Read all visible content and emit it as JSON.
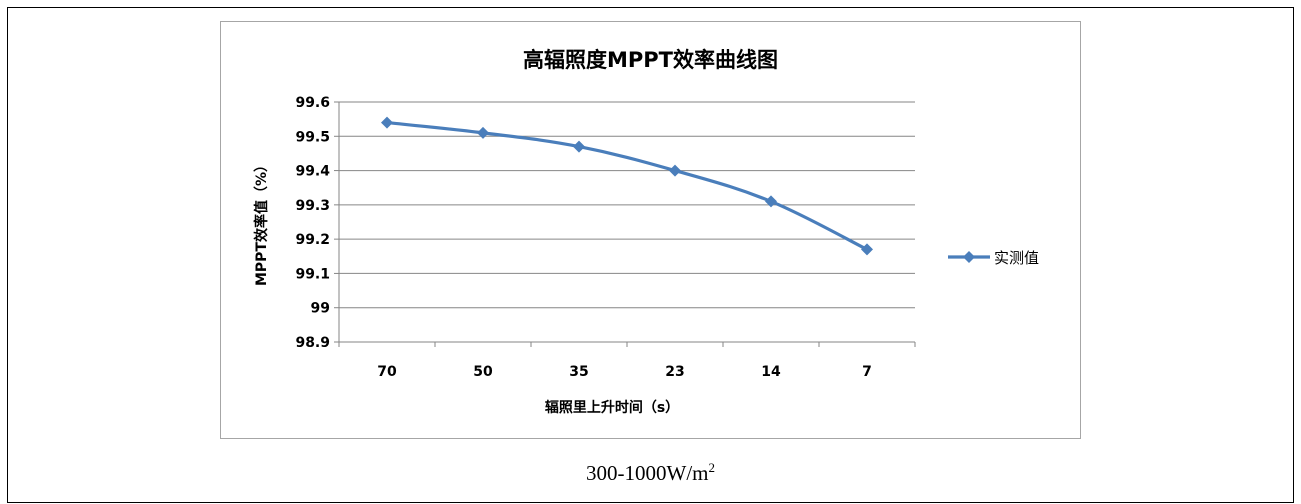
{
  "caption": {
    "text": "300-1000W/m",
    "sup": "2"
  },
  "chart_data": {
    "type": "line",
    "title": "高辐照度MPPT效率曲线图",
    "xlabel": "辐照里上升时间（s）",
    "ylabel": "MPPT效率值（%）",
    "categories": [
      "70",
      "50",
      "35",
      "23",
      "14",
      "7"
    ],
    "series": [
      {
        "name": "实测值",
        "values": [
          99.54,
          99.51,
          99.47,
          99.4,
          99.31,
          99.17
        ],
        "color": "#4a7ebb",
        "marker": "diamond"
      }
    ],
    "ylim": [
      98.9,
      99.6
    ],
    "yticks": [
      "98.9",
      "99",
      "99.1",
      "99.2",
      "99.3",
      "99.4",
      "99.5",
      "99.6"
    ],
    "grid": "horizontal",
    "legend_position": "right"
  }
}
